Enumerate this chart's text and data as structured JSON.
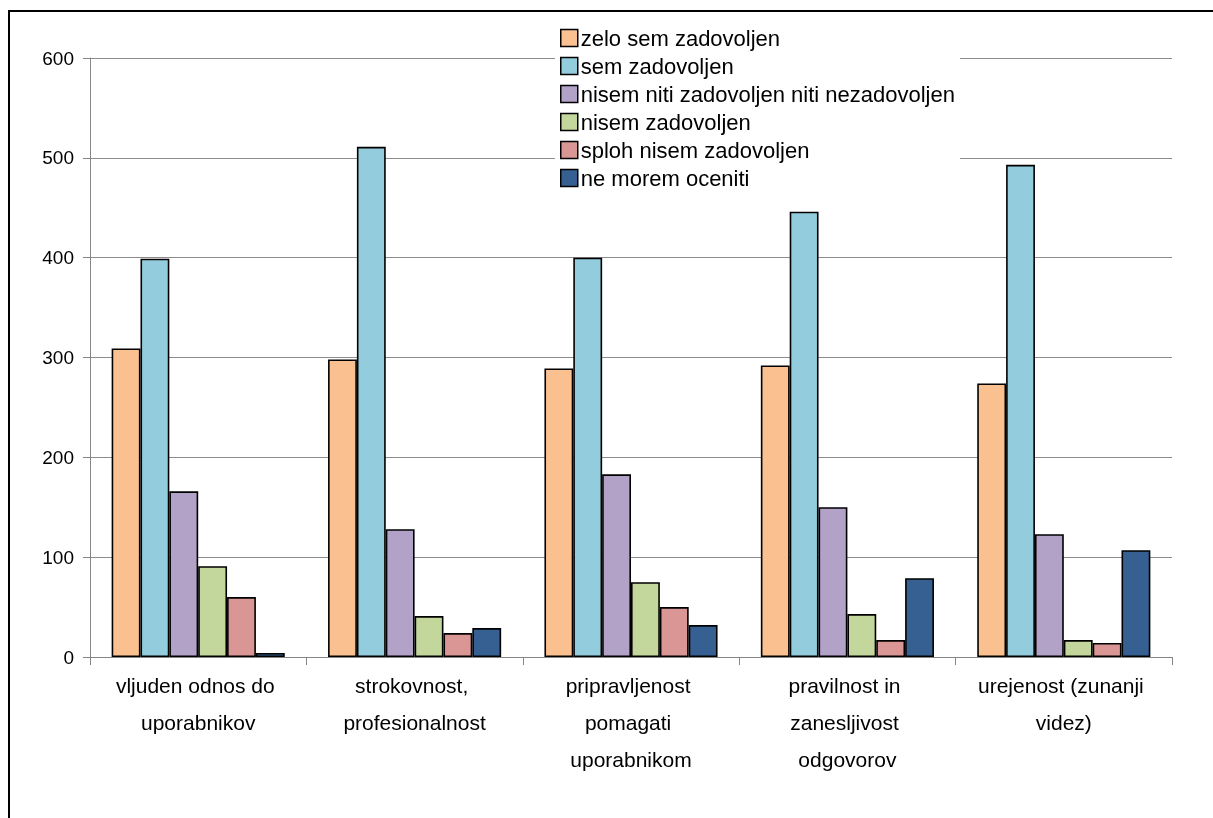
{
  "chart_data": {
    "type": "bar",
    "categories": [
      "vljuden odnos do uporabnikov",
      "strokovnost, profesionalnost",
      "pripravljenost pomagati uporabnikom",
      "pravilnost in zanesljivost odgovorov",
      "urejenost (zunanji videz)"
    ],
    "series": [
      {
        "name": "zelo sem zadovoljen",
        "color": "#fac090",
        "values": [
          309,
          298,
          289,
          292,
          274
        ]
      },
      {
        "name": "sem zadovoljen",
        "color": "#93cddd",
        "values": [
          399,
          511,
          400,
          446,
          493
        ]
      },
      {
        "name": "nisem niti zadovoljen niti nezadovoljen",
        "color": "#b3a2c7",
        "values": [
          166,
          128,
          183,
          150,
          123
        ]
      },
      {
        "name": "nisem zadovoljen",
        "color": "#c3d69b",
        "values": [
          91,
          41,
          75,
          43,
          17
        ]
      },
      {
        "name": "sploh nisem zadovoljen",
        "color": "#d99694",
        "values": [
          60,
          24,
          50,
          17,
          14
        ]
      },
      {
        "name": "ne morem oceniti",
        "color": "#376092",
        "values": [
          4,
          29,
          32,
          79,
          107
        ]
      }
    ],
    "ylim": [
      0,
      600
    ],
    "yticks": [
      0,
      100,
      200,
      300,
      400,
      500,
      600
    ],
    "grid": "y",
    "legend": "top"
  }
}
